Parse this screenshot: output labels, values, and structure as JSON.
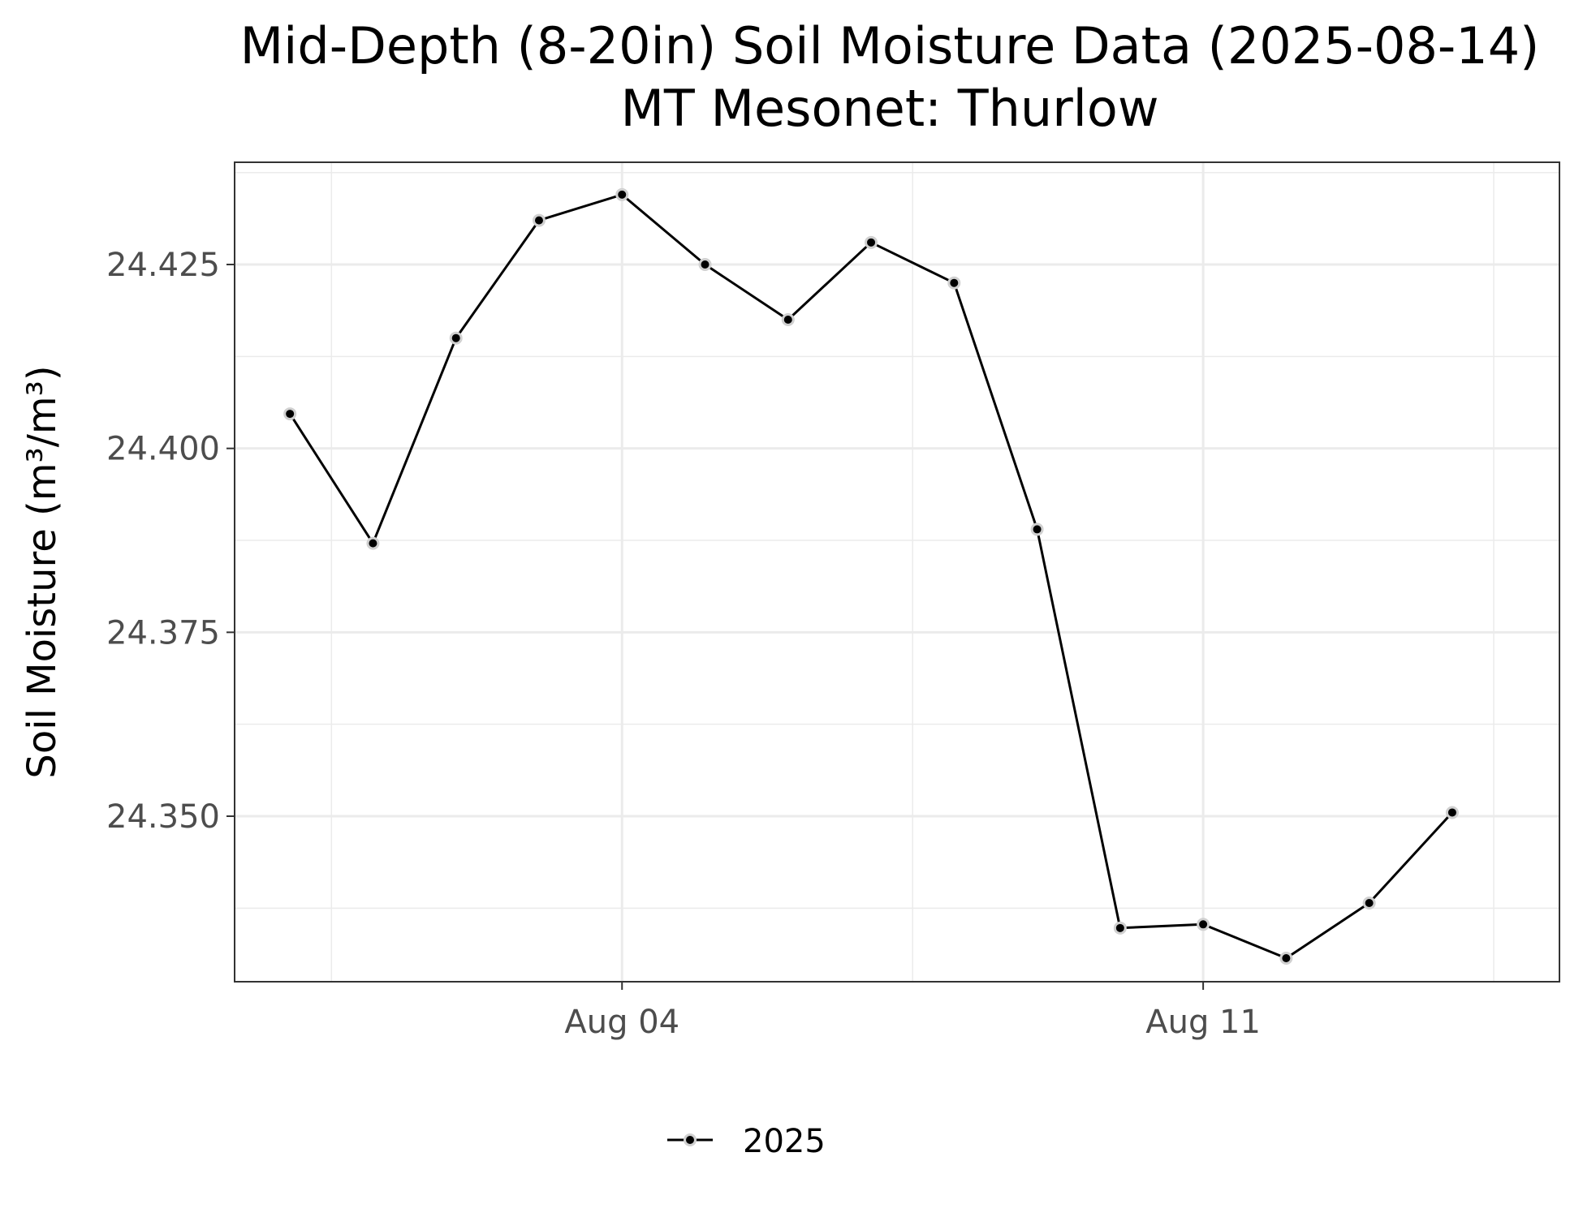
{
  "chart_data": {
    "type": "line",
    "title": "Mid-Depth (8-20in) Soil Moisture Data (2025-08-14)",
    "subtitle": "MT Mesonet: Thurlow",
    "xlabel": "",
    "ylabel": "Soil Moisture (m³/m³)",
    "x_ticks": [
      {
        "date": "2025-08-04",
        "label": "Aug 04"
      },
      {
        "date": "2025-08-11",
        "label": "Aug 11"
      }
    ],
    "y_ticks": [
      {
        "value": 24.35,
        "label": "24.350"
      },
      {
        "value": 24.375,
        "label": "24.375"
      },
      {
        "value": 24.4,
        "label": "24.400"
      },
      {
        "value": 24.425,
        "label": "24.425"
      }
    ],
    "xlim": [
      "2025-07-30T08:00",
      "2025-08-15T07:00"
    ],
    "ylim": [
      24.3275,
      24.4389
    ],
    "grid": true,
    "legend_position": "bottom",
    "series": [
      {
        "name": "2025",
        "color": "#000000",
        "x": [
          "2025-07-31",
          "2025-08-01",
          "2025-08-02",
          "2025-08-03",
          "2025-08-04",
          "2025-08-05",
          "2025-08-06",
          "2025-08-07",
          "2025-08-08",
          "2025-08-09",
          "2025-08-10",
          "2025-08-11",
          "2025-08-12",
          "2025-08-13",
          "2025-08-14"
        ],
        "y": [
          24.4047,
          24.3871,
          24.415,
          24.431,
          24.4345,
          24.425,
          24.4175,
          24.428,
          24.4225,
          24.389,
          24.3348,
          24.3353,
          24.3307,
          24.3382,
          24.3505
        ]
      }
    ]
  }
}
